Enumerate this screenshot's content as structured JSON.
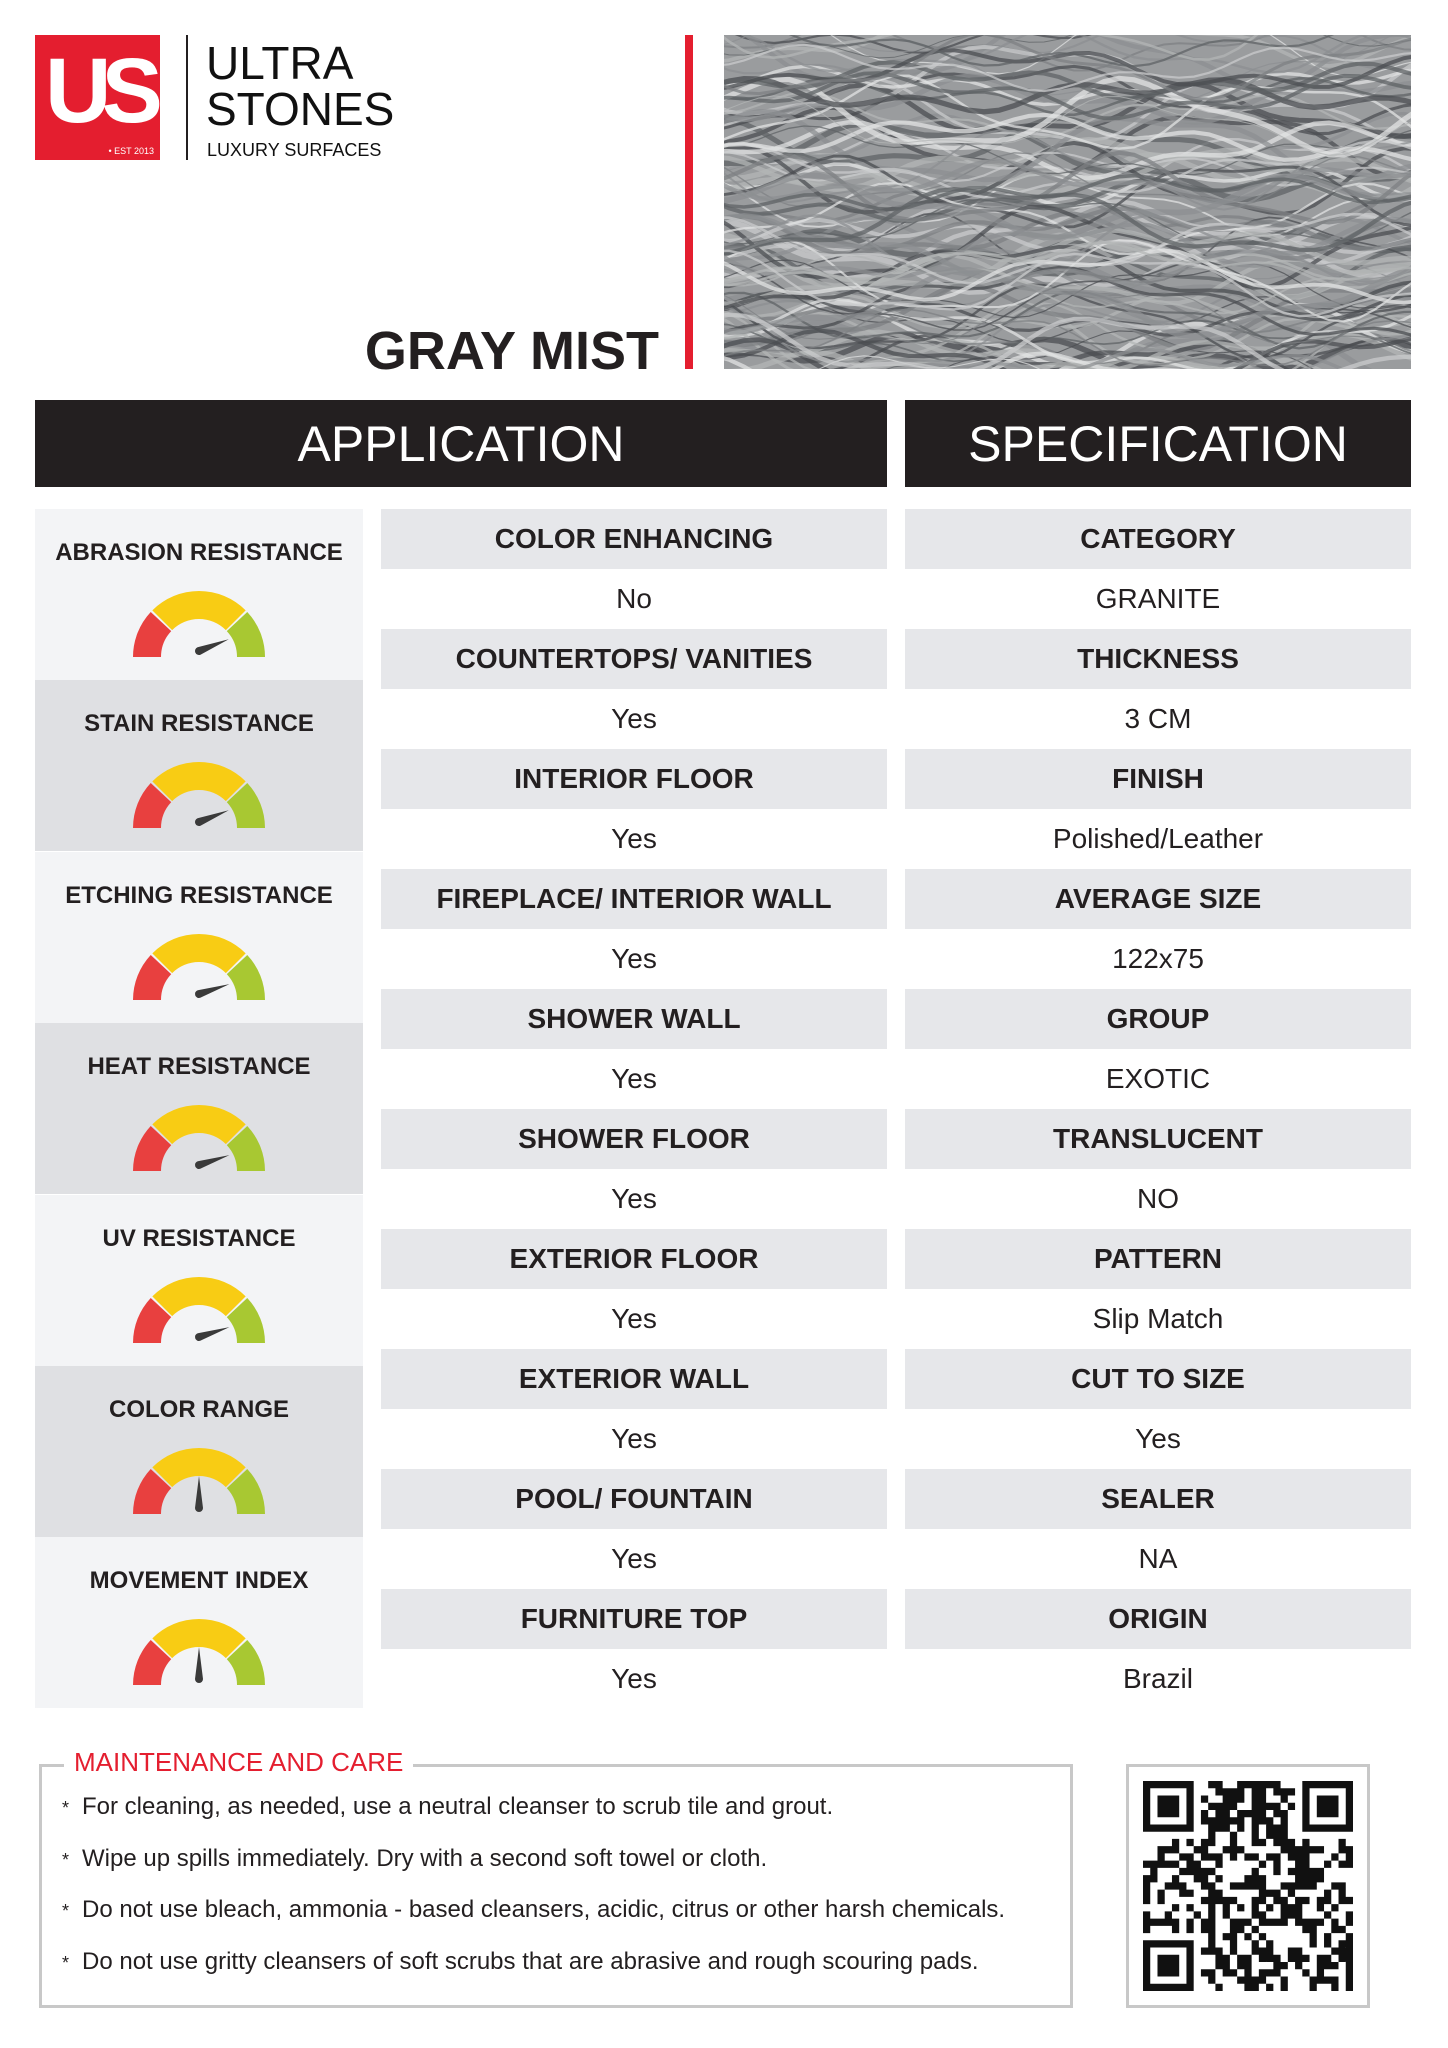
{
  "brand": {
    "logo_letters": "US",
    "logo_est": "• EST 2013",
    "name_line1": "ULTRA",
    "name_line2": "STONES",
    "tagline": "LUXURY SURFACES",
    "accent_color": "#e41e2f"
  },
  "product": {
    "name": "GRAY MIST"
  },
  "headers": {
    "application": "APPLICATION",
    "specification": "SPECIFICATION"
  },
  "gauge_colors": {
    "low": "#e8403f",
    "mid": "#f8cc14",
    "high": "#a8c832",
    "needle": "#3a3a3a"
  },
  "ratings": [
    {
      "label": "ABRASION RESISTANCE",
      "level": 0.88
    },
    {
      "label": "STAIN RESISTANCE",
      "level": 0.88
    },
    {
      "label": "ETCHING RESISTANCE",
      "level": 0.9
    },
    {
      "label": "HEAT RESISTANCE",
      "level": 0.9
    },
    {
      "label": "UV RESISTANCE",
      "level": 0.9
    },
    {
      "label": "COLOR RANGE",
      "level": 0.5
    },
    {
      "label": "MOVEMENT INDEX",
      "level": 0.5
    }
  ],
  "application": [
    {
      "label": "COLOR ENHANCING",
      "value": "No"
    },
    {
      "label": "COUNTERTOPS/ VANITIES",
      "value": "Yes"
    },
    {
      "label": "INTERIOR FLOOR",
      "value": "Yes"
    },
    {
      "label": "FIREPLACE/ INTERIOR WALL",
      "value": "Yes"
    },
    {
      "label": "SHOWER WALL",
      "value": "Yes"
    },
    {
      "label": "SHOWER FLOOR",
      "value": "Yes"
    },
    {
      "label": "EXTERIOR FLOOR",
      "value": "Yes"
    },
    {
      "label": "EXTERIOR WALL",
      "value": "Yes"
    },
    {
      "label": "POOL/ FOUNTAIN",
      "value": "Yes"
    },
    {
      "label": "FURNITURE TOP",
      "value": "Yes"
    }
  ],
  "specification": [
    {
      "label": "CATEGORY",
      "value": "GRANITE"
    },
    {
      "label": "THICKNESS",
      "value": "3 CM"
    },
    {
      "label": "FINISH",
      "value": "Polished/Leather"
    },
    {
      "label": "AVERAGE SIZE",
      "value": "122x75"
    },
    {
      "label": "GROUP",
      "value": "EXOTIC"
    },
    {
      "label": "TRANSLUCENT",
      "value": "NO"
    },
    {
      "label": "PATTERN",
      "value": "Slip Match"
    },
    {
      "label": "CUT TO SIZE",
      "value": "Yes"
    },
    {
      "label": "SEALER",
      "value": "NA"
    },
    {
      "label": "ORIGIN",
      "value": "Brazil"
    }
  ],
  "maintenance": {
    "title": "MAINTENANCE AND CARE",
    "bullet_symbol": "*",
    "items": [
      "For cleaning, as needed, use a neutral cleanser to scrub tile and grout.",
      "Wipe up spills immediately. Dry with a second soft towel or cloth.",
      "Do not use bleach, ammonia - based cleansers, acidic, citrus or other harsh chemicals.",
      "Do not use gritty cleansers of soft scrubs that are abrasive and rough scouring pads."
    ]
  }
}
